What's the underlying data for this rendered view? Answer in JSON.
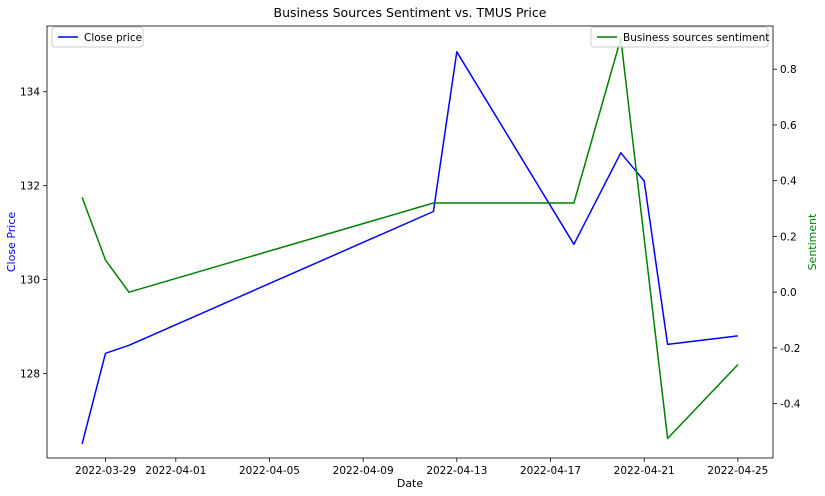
{
  "chart_data": {
    "type": "line",
    "title": "Business Sources Sentiment vs. TMUS Price",
    "xlabel": "Date",
    "ylabel": "Close Price",
    "y2label": "Sentiment",
    "x_ticks": [
      "2022-03-29",
      "2022-04-01",
      "2022-04-05",
      "2022-04-09",
      "2022-04-13",
      "2022-04-17",
      "2022-04-21",
      "2022-04-25"
    ],
    "y_ticks": [
      128,
      130,
      132,
      134
    ],
    "y2_ticks": [
      -0.4,
      -0.2,
      0.0,
      0.2,
      0.4,
      0.6,
      0.8
    ],
    "xlim": [
      "2022-03-26 12:00",
      "2022-04-26 12:00"
    ],
    "ylim": [
      126.2,
      135.4
    ],
    "y2lim": [
      -0.595,
      0.955
    ],
    "grid": false,
    "colors": {
      "close": "#0000ff",
      "sentiment": "#008000",
      "y_label_color": "#0000ff",
      "y2_label_color": "#008000"
    },
    "series": [
      {
        "name": "Close price",
        "axis": "left",
        "x": [
          "2022-03-28",
          "2022-03-29",
          "2022-03-30",
          "2022-04-12",
          "2022-04-13",
          "2022-04-18",
          "2022-04-20",
          "2022-04-21",
          "2022-04-22",
          "2022-04-25"
        ],
        "values": [
          126.5,
          128.43,
          128.6,
          131.45,
          134.85,
          130.75,
          132.7,
          132.1,
          128.62,
          128.8
        ]
      },
      {
        "name": "Business sources sentiment",
        "axis": "right",
        "x": [
          "2022-03-28",
          "2022-03-29",
          "2022-03-30",
          "2022-04-12",
          "2022-04-18",
          "2022-04-20",
          "2022-04-22",
          "2022-04-25"
        ],
        "values": [
          0.34,
          0.115,
          0.0,
          0.32,
          0.32,
          0.91,
          -0.525,
          -0.26
        ]
      }
    ],
    "legend_left": "upper-left",
    "legend_right": "upper-right"
  }
}
